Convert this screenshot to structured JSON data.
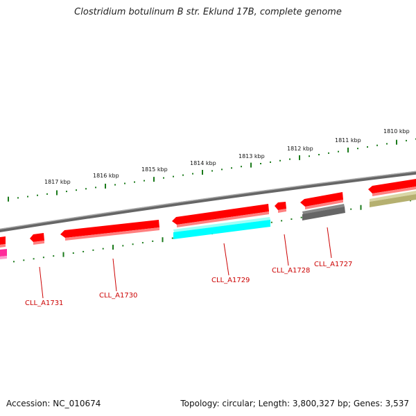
{
  "title": "Clostridium botulinum B str. Eklund 17B, complete genome",
  "footer": {
    "accession": "Accession: NC_010674",
    "topology": "Topology: circular; Length: 3,800,327 bp; Genes: 3,537"
  },
  "colors": {
    "backbone": "#888888",
    "ticks": "#1a7a1a",
    "gene_red": "#ff0000",
    "gene_cyan": "#00ffff",
    "gene_gray": "#666666",
    "gene_olive": "#b5b070",
    "gene_magenta": "#ff2a9a",
    "label": "#cc0000"
  },
  "ruler": {
    "labels": [
      "1817 kbp",
      "1816 kbp",
      "1815 kbp",
      "1814 kbp",
      "1813 kbp",
      "1812 kbp",
      "1811 kbp",
      "1810 kbp"
    ]
  },
  "gene_labels": [
    "CLL_A1731",
    "CLL_A1730",
    "CLL_A1729",
    "CLL_A1728",
    "CLL_A1727"
  ]
}
